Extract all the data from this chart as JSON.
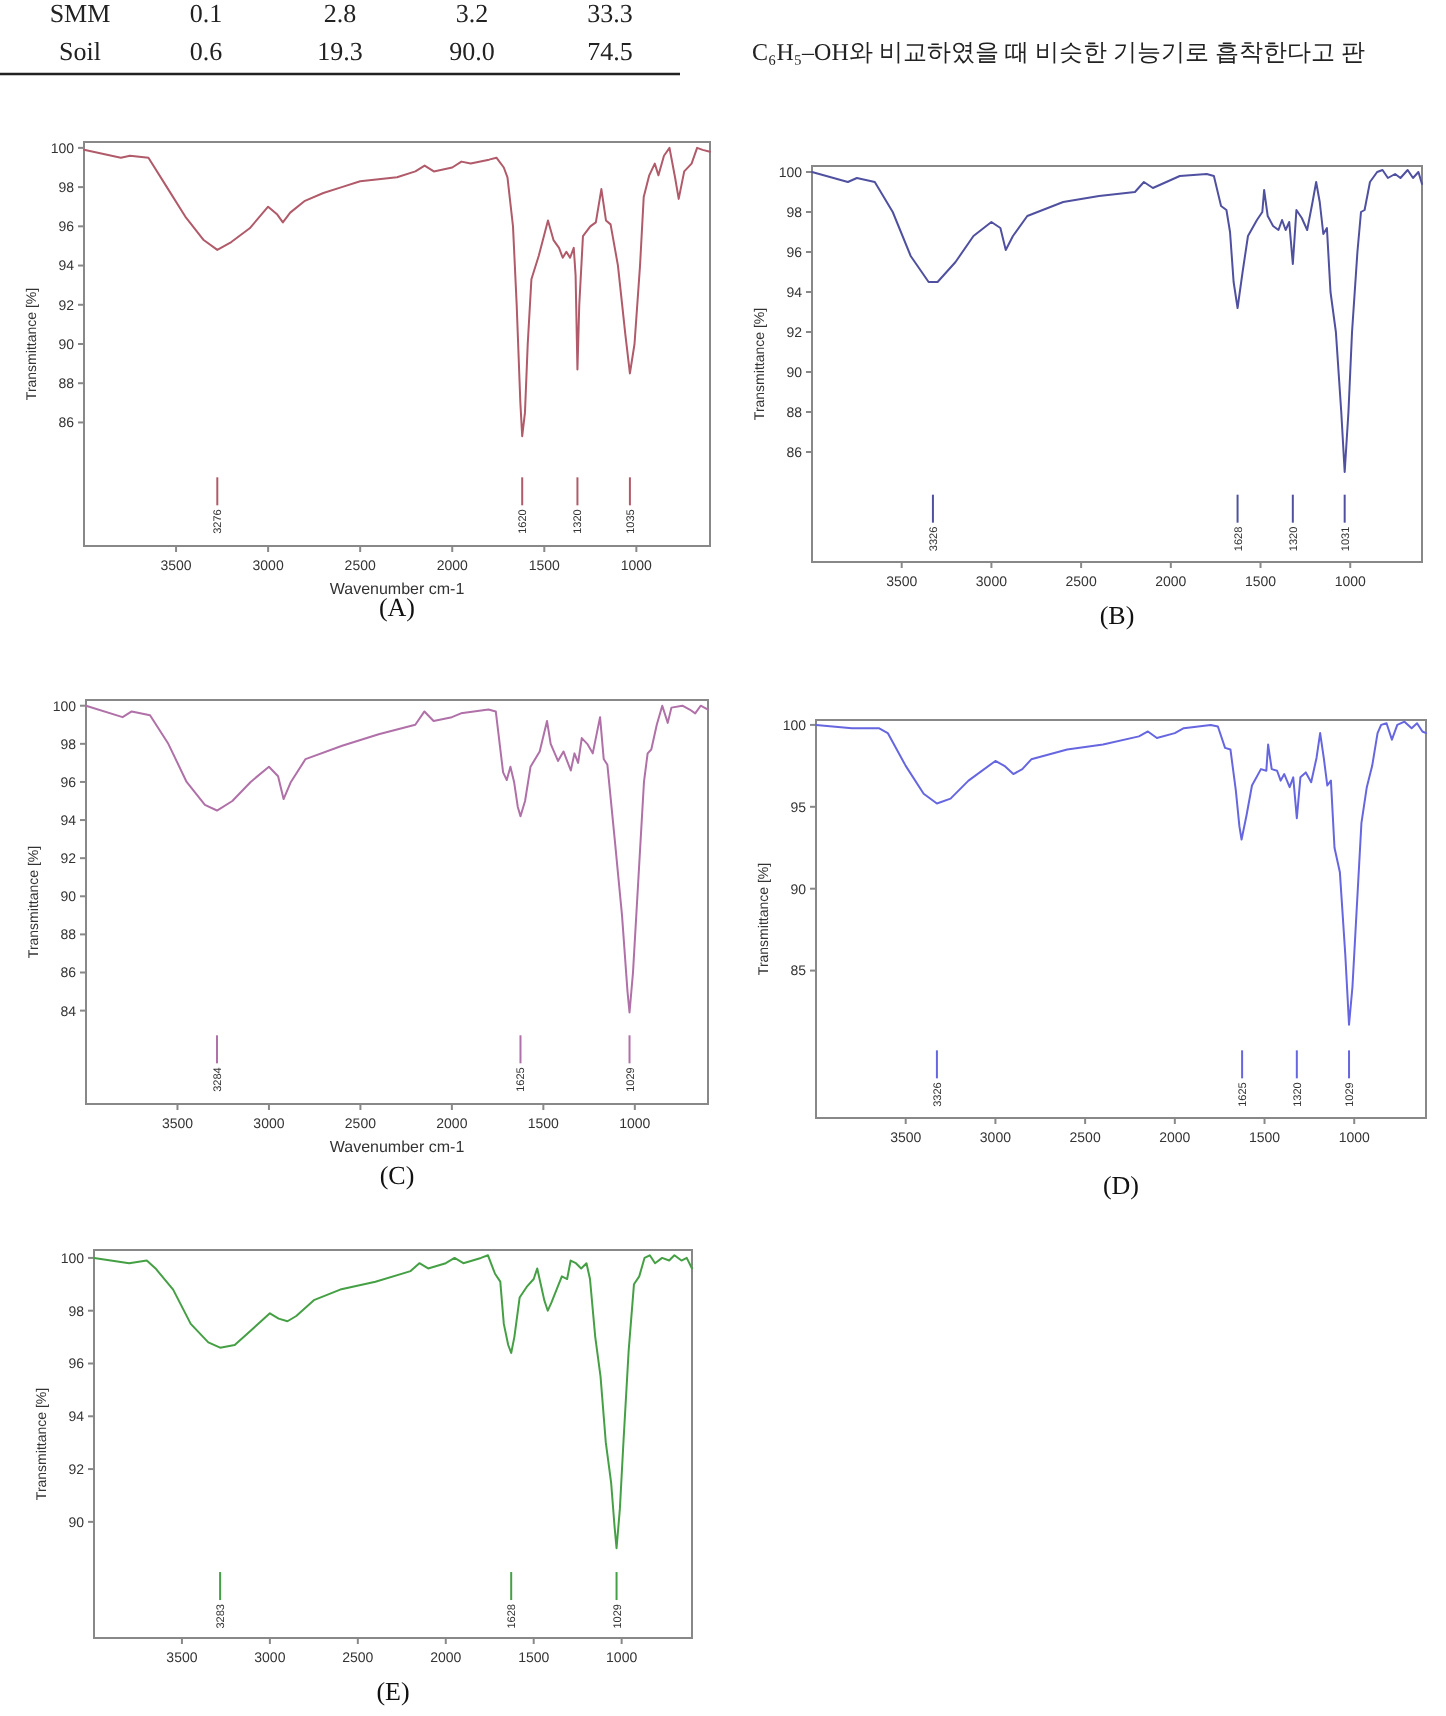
{
  "chart_data": [
    {
      "type": "other",
      "annotations": [
        "SMM",
        "0.1",
        "2.8",
        "3.2",
        "33.3",
        "Soil",
        "0.6",
        "19.3",
        "90.0",
        "74.5",
        "C₆H₅–OH와 비교하였을 때 비슷한 기능기로 흡착한다고 판"
      ]
    },
    {
      "type": "line",
      "title": "(A)",
      "xlabel": "Wavenumber cm-1",
      "ylabel": "Transmittance [%]",
      "xlim": [
        4000,
        600
      ],
      "xticks": [
        3500,
        3000,
        2500,
        2000,
        1500,
        1000
      ],
      "ylim": [
        79.7,
        100.3
      ],
      "yticks": [
        86,
        88,
        90,
        92,
        94,
        96,
        98,
        100
      ],
      "grid": false,
      "marker": "none",
      "line_style": "solid",
      "x": [
        4000,
        3800,
        3750,
        3650,
        3550,
        3450,
        3350,
        3276,
        3200,
        3100,
        3000,
        2950,
        2920,
        2880,
        2800,
        2700,
        2600,
        2500,
        2400,
        2300,
        2200,
        2150,
        2100,
        2000,
        1950,
        1900,
        1800,
        1760,
        1720,
        1700,
        1670,
        1650,
        1630,
        1620,
        1605,
        1590,
        1570,
        1530,
        1480,
        1450,
        1420,
        1400,
        1380,
        1360,
        1340,
        1330,
        1320,
        1310,
        1290,
        1250,
        1220,
        1190,
        1165,
        1140,
        1100,
        1060,
        1035,
        1010,
        980,
        960,
        930,
        900,
        880,
        850,
        820,
        790,
        770,
        740,
        700,
        670,
        640,
        600
      ],
      "series": [
        {
          "color": "#b05a6a",
          "values": [
            99.9,
            99.5,
            99.6,
            99.5,
            98,
            96.5,
            95.3,
            94.8,
            95.2,
            95.9,
            97.0,
            96.6,
            96.2,
            96.7,
            97.3,
            97.7,
            98.0,
            98.3,
            98.4,
            98.5,
            98.8,
            99.1,
            98.8,
            99.0,
            99.3,
            99.2,
            99.4,
            99.5,
            99.0,
            98.5,
            96,
            92,
            87,
            85.3,
            86.5,
            90,
            93.3,
            94.5,
            96.3,
            95.3,
            94.9,
            94.4,
            94.7,
            94.4,
            94.9,
            93.5,
            88.7,
            92,
            95.5,
            96,
            96.2,
            97.9,
            96.3,
            96.1,
            94,
            90.5,
            88.5,
            90,
            94,
            97.5,
            98.6,
            99.2,
            98.6,
            99.6,
            100,
            98.5,
            97.4,
            98.8,
            99.2,
            100,
            99.9,
            99.8
          ]
        }
      ],
      "ref_lines": [
        {
          "axis": "x",
          "value": 3276,
          "label": "3276"
        },
        {
          "axis": "x",
          "value": 1620,
          "label": "1620"
        },
        {
          "axis": "x",
          "value": 1320,
          "label": "1320"
        },
        {
          "axis": "x",
          "value": 1035,
          "label": "1035"
        }
      ]
    },
    {
      "type": "line",
      "title": "(B)",
      "ylabel": "Transmittance [%]",
      "xlim": [
        4000,
        600
      ],
      "xticks": [
        3500,
        3000,
        2500,
        2000,
        1500,
        1000
      ],
      "ylim": [
        80.5,
        100.3
      ],
      "yticks": [
        86,
        88,
        90,
        92,
        94,
        96,
        98,
        100
      ],
      "grid": false,
      "marker": "none",
      "line_style": "solid",
      "x": [
        4000,
        3800,
        3750,
        3650,
        3550,
        3450,
        3350,
        3300,
        3200,
        3100,
        3000,
        2950,
        2920,
        2880,
        2800,
        2600,
        2400,
        2200,
        2150,
        2100,
        2000,
        1950,
        1800,
        1760,
        1720,
        1690,
        1670,
        1650,
        1628,
        1600,
        1570,
        1520,
        1490,
        1480,
        1460,
        1430,
        1400,
        1380,
        1360,
        1340,
        1320,
        1300,
        1270,
        1240,
        1210,
        1190,
        1170,
        1150,
        1130,
        1110,
        1080,
        1050,
        1031,
        1010,
        990,
        960,
        940,
        920,
        890,
        850,
        820,
        790,
        750,
        720,
        680,
        650,
        620,
        600
      ],
      "series": [
        {
          "color": "#5050a0",
          "values": [
            100,
            99.5,
            99.7,
            99.5,
            98,
            95.8,
            94.5,
            94.5,
            95.5,
            96.8,
            97.5,
            97.2,
            96.1,
            96.8,
            97.8,
            98.5,
            98.8,
            99,
            99.5,
            99.2,
            99.6,
            99.8,
            99.9,
            99.8,
            98.3,
            98.1,
            97,
            94.5,
            93.2,
            95,
            96.8,
            97.6,
            98,
            99.1,
            97.8,
            97.3,
            97.1,
            97.6,
            97.1,
            97.5,
            95.4,
            98.1,
            97.7,
            97.1,
            98.5,
            99.5,
            98.5,
            96.9,
            97.2,
            94,
            92,
            88,
            85.0,
            88,
            92,
            96,
            98,
            98.1,
            99.5,
            100,
            100.1,
            99.7,
            99.9,
            99.7,
            100.1,
            99.7,
            100,
            99.4
          ]
        }
      ],
      "ref_lines": [
        {
          "axis": "x",
          "value": 3326,
          "label": "3326"
        },
        {
          "axis": "x",
          "value": 1628,
          "label": "1628"
        },
        {
          "axis": "x",
          "value": 1320,
          "label": "1320"
        },
        {
          "axis": "x",
          "value": 1031,
          "label": "1031"
        }
      ]
    },
    {
      "type": "line",
      "title": "(C)",
      "xlabel": "Wavenumber cm-1",
      "ylabel": "Transmittance [%]",
      "xlim": [
        4000,
        600
      ],
      "xticks": [
        3500,
        3000,
        2500,
        2000,
        1500,
        1000
      ],
      "ylim": [
        79.1,
        100.3
      ],
      "yticks": [
        84,
        86,
        88,
        90,
        92,
        94,
        96,
        98,
        100
      ],
      "grid": false,
      "marker": "none",
      "line_style": "solid",
      "x": [
        4000,
        3800,
        3750,
        3650,
        3550,
        3450,
        3350,
        3284,
        3200,
        3100,
        3000,
        2950,
        2920,
        2880,
        2800,
        2600,
        2400,
        2200,
        2150,
        2100,
        2000,
        1950,
        1800,
        1760,
        1720,
        1700,
        1680,
        1660,
        1640,
        1625,
        1600,
        1570,
        1520,
        1480,
        1460,
        1420,
        1390,
        1350,
        1330,
        1310,
        1290,
        1260,
        1230,
        1190,
        1170,
        1150,
        1110,
        1070,
        1040,
        1029,
        1010,
        980,
        950,
        930,
        910,
        880,
        850,
        820,
        800,
        740,
        700,
        670,
        640,
        600
      ],
      "series": [
        {
          "color": "#b070a8",
          "values": [
            100,
            99.4,
            99.7,
            99.5,
            98,
            96,
            94.8,
            94.5,
            95,
            96,
            96.8,
            96.3,
            95.1,
            96.0,
            97.2,
            97.9,
            98.5,
            99,
            99.7,
            99.2,
            99.4,
            99.6,
            99.8,
            99.7,
            96.5,
            96.1,
            96.8,
            96,
            94.7,
            94.2,
            95,
            96.8,
            97.6,
            99.2,
            98,
            97.1,
            97.6,
            96.6,
            97.5,
            97,
            98.3,
            98,
            97.5,
            99.4,
            97.2,
            96.9,
            93,
            89,
            85,
            83.9,
            86,
            91,
            96,
            97.5,
            97.7,
            99,
            100,
            99.1,
            99.9,
            100,
            99.8,
            99.6,
            100,
            99.8
          ]
        }
      ],
      "ref_lines": [
        {
          "axis": "x",
          "value": 3284,
          "label": "3284"
        },
        {
          "axis": "x",
          "value": 1625,
          "label": "1625"
        },
        {
          "axis": "x",
          "value": 1029,
          "label": "1029"
        }
      ]
    },
    {
      "type": "line",
      "title": "(D)",
      "ylabel": "Transmittance [%]",
      "xlim": [
        4000,
        600
      ],
      "xticks": [
        3500,
        3000,
        2500,
        2000,
        1500,
        1000
      ],
      "ylim": [
        76,
        100.3
      ],
      "yticks": [
        85,
        90,
        95,
        100
      ],
      "grid": false,
      "marker": "none",
      "line_style": "solid",
      "x": [
        4000,
        3800,
        3650,
        3600,
        3500,
        3400,
        3326,
        3250,
        3150,
        3000,
        2950,
        2900,
        2850,
        2800,
        2600,
        2400,
        2200,
        2150,
        2100,
        2000,
        1950,
        1800,
        1760,
        1720,
        1690,
        1660,
        1640,
        1628,
        1600,
        1570,
        1520,
        1490,
        1480,
        1460,
        1430,
        1410,
        1390,
        1360,
        1340,
        1320,
        1300,
        1270,
        1240,
        1210,
        1190,
        1170,
        1150,
        1130,
        1110,
        1080,
        1050,
        1029,
        1010,
        990,
        960,
        930,
        900,
        870,
        850,
        820,
        790,
        760,
        720,
        680,
        650,
        620,
        600
      ],
      "series": [
        {
          "color": "#6666e0",
          "values": [
            100,
            99.8,
            99.8,
            99.5,
            97.5,
            95.8,
            95.2,
            95.5,
            96.6,
            97.8,
            97.5,
            97.0,
            97.3,
            97.9,
            98.5,
            98.8,
            99.3,
            99.6,
            99.2,
            99.5,
            99.8,
            100,
            99.9,
            98.6,
            98.5,
            96,
            93.8,
            93.0,
            94.5,
            96.3,
            97.3,
            97.2,
            98.8,
            97.3,
            97.2,
            96.6,
            97,
            96.2,
            96.8,
            94.3,
            96.8,
            97.1,
            96.5,
            98,
            99.5,
            98,
            96.3,
            96.6,
            92.5,
            91,
            86,
            81.7,
            84,
            88,
            94,
            96.2,
            97.5,
            99.5,
            100,
            100.1,
            99.1,
            100,
            100.2,
            99.8,
            100.1,
            99.6,
            99.5
          ]
        }
      ],
      "ref_lines": [
        {
          "axis": "x",
          "value": 3326,
          "label": "3326"
        },
        {
          "axis": "x",
          "value": 1625,
          "label": "1625"
        },
        {
          "axis": "x",
          "value": 1320,
          "label": "1320"
        },
        {
          "axis": "x",
          "value": 1029,
          "label": "1029"
        }
      ]
    },
    {
      "type": "line",
      "title": "(E)",
      "ylabel": "Transmittance [%]",
      "xlim": [
        4000,
        600
      ],
      "xticks": [
        3500,
        3000,
        2500,
        2000,
        1500,
        1000
      ],
      "ylim": [
        85.6,
        100.3
      ],
      "yticks": [
        90,
        92,
        94,
        96,
        98,
        100
      ],
      "grid": false,
      "marker": "none",
      "line_style": "solid",
      "x": [
        4000,
        3800,
        3700,
        3650,
        3550,
        3450,
        3350,
        3283,
        3200,
        3100,
        3000,
        2950,
        2900,
        2850,
        2750,
        2600,
        2400,
        2200,
        2150,
        2100,
        2000,
        1950,
        1900,
        1800,
        1760,
        1720,
        1690,
        1670,
        1645,
        1628,
        1610,
        1580,
        1540,
        1500,
        1480,
        1460,
        1440,
        1420,
        1400,
        1370,
        1340,
        1310,
        1290,
        1260,
        1230,
        1200,
        1180,
        1150,
        1120,
        1090,
        1060,
        1040,
        1029,
        1010,
        990,
        960,
        930,
        900,
        870,
        840,
        810,
        770,
        730,
        700,
        660,
        630,
        600
      ],
      "series": [
        {
          "color": "#45a045",
          "values": [
            100,
            99.8,
            99.9,
            99.6,
            98.8,
            97.5,
            96.8,
            96.6,
            96.7,
            97.3,
            97.9,
            97.7,
            97.6,
            97.8,
            98.4,
            98.8,
            99.1,
            99.5,
            99.8,
            99.6,
            99.8,
            100,
            99.8,
            100,
            100.1,
            99.4,
            99.1,
            97.5,
            96.7,
            96.4,
            97,
            98.5,
            98.9,
            99.2,
            99.6,
            99,
            98.4,
            98.0,
            98.3,
            98.8,
            99.3,
            99.2,
            99.9,
            99.8,
            99.6,
            99.8,
            99.2,
            97,
            95.5,
            93,
            91.5,
            89.8,
            89.0,
            90.5,
            93,
            96.5,
            99,
            99.3,
            100,
            100.1,
            99.8,
            100,
            99.9,
            100.1,
            99.9,
            100,
            99.6
          ]
        }
      ],
      "ref_lines": [
        {
          "axis": "x",
          "value": 3283,
          "label": "3283"
        },
        {
          "axis": "x",
          "value": 1628,
          "label": "1628"
        },
        {
          "axis": "x",
          "value": 1029,
          "label": "1029"
        }
      ]
    }
  ]
}
